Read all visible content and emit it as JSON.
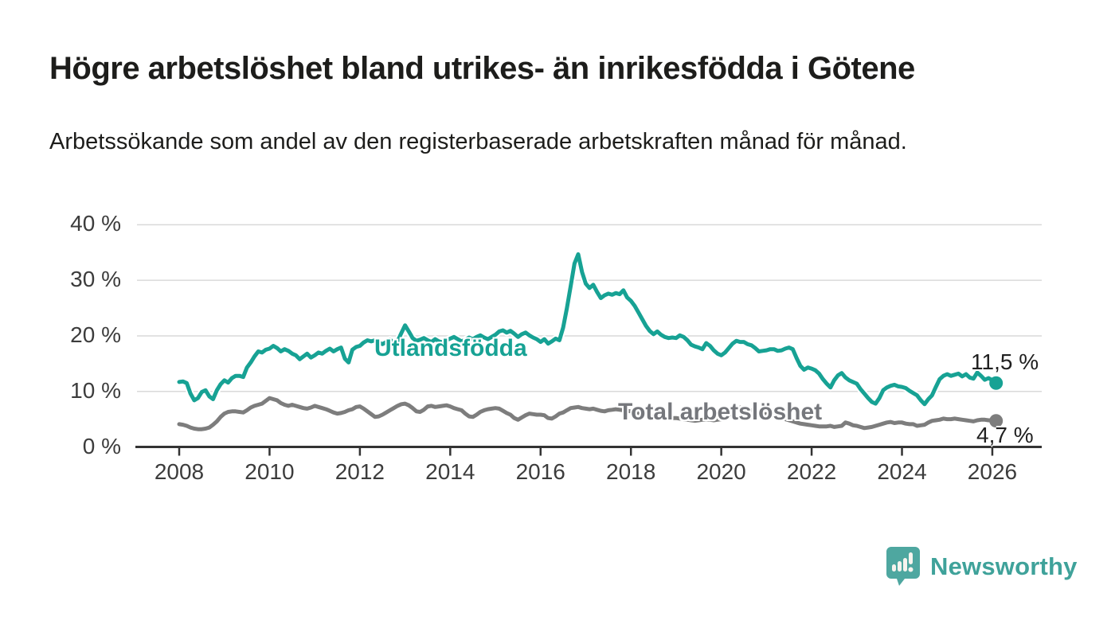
{
  "header": {
    "title": "Högre arbetslöshet bland utrikes- än inrikesfödda i Götene",
    "subtitle": "Arbetssökande som andel av den registerbaserade arbetskraften månad för månad."
  },
  "footer": {
    "brand": "Newsworthy",
    "brand_icon": "bar-chart-speech-bubble-icon"
  },
  "colors": {
    "foreign_born_line": "#17a294",
    "total_line": "#7d7d7d",
    "total_label": "#75777c",
    "grid": "#d9d9d9",
    "axis": "#333333",
    "tick_text": "#3c3c3c",
    "brand_teal": "#4ea7a0"
  },
  "chart_data": {
    "type": "line",
    "title": "Högre arbetslöshet bland utrikes- än inrikesfödda i Götene",
    "subtitle": "Arbetssökande som andel av den registerbaserade arbetskraften månad för månad.",
    "x_unit": "month",
    "x_start": "2008-01",
    "x_end": "2026-02",
    "ylim": [
      0,
      40
    ],
    "grid": "horizontal",
    "legend_position": "inline-labels",
    "y_ticks": [
      {
        "value": 0,
        "label": "0 %"
      },
      {
        "value": 10,
        "label": "10 %"
      },
      {
        "value": 20,
        "label": "20 %"
      },
      {
        "value": 30,
        "label": "30 %"
      },
      {
        "value": 40,
        "label": "40 %"
      }
    ],
    "x_ticks": [
      {
        "year": 2008,
        "label": "2008"
      },
      {
        "year": 2010,
        "label": "2010"
      },
      {
        "year": 2012,
        "label": "2012"
      },
      {
        "year": 2014,
        "label": "2014"
      },
      {
        "year": 2016,
        "label": "2016"
      },
      {
        "year": 2018,
        "label": "2018"
      },
      {
        "year": 2020,
        "label": "2020"
      },
      {
        "year": 2022,
        "label": "2022"
      },
      {
        "year": 2024,
        "label": "2024"
      },
      {
        "year": 2026,
        "label": "2026"
      }
    ],
    "series": [
      {
        "name": "Utlandsfödda",
        "color": "#17a294",
        "end_value": 11.5,
        "end_label": "11,5 %",
        "values": [
          11.7,
          11.8,
          11.5,
          9.6,
          8.4,
          8.8,
          9.9,
          10.2,
          9.1,
          8.6,
          10.2,
          11.3,
          12.0,
          11.6,
          12.4,
          12.8,
          12.8,
          12.6,
          14.3,
          15.2,
          16.3,
          17.2,
          17.0,
          17.5,
          17.7,
          18.2,
          17.8,
          17.2,
          17.6,
          17.3,
          16.8,
          16.5,
          15.8,
          16.3,
          16.8,
          16.1,
          16.5,
          17.0,
          16.8,
          17.3,
          17.7,
          17.2,
          17.6,
          17.9,
          15.9,
          15.2,
          17.5,
          18.0,
          18.2,
          18.8,
          19.2,
          19.0,
          19.2,
          18.8,
          18.5,
          18.9,
          19.3,
          18.8,
          19.0,
          20.5,
          21.9,
          20.8,
          19.6,
          19.1,
          19.3,
          19.6,
          19.2,
          18.9,
          19.4,
          19.0,
          18.8,
          19.2,
          19.5,
          19.8,
          19.4,
          19.0,
          19.3,
          19.7,
          19.4,
          19.8,
          20.1,
          19.7,
          19.4,
          19.8,
          20.2,
          20.8,
          21.0,
          20.6,
          20.9,
          20.4,
          19.8,
          20.3,
          20.6,
          20.1,
          19.7,
          19.4,
          18.9,
          19.4,
          18.6,
          19.0,
          19.5,
          19.2,
          21.5,
          25.0,
          29.0,
          33.0,
          34.7,
          31.5,
          29.4,
          28.6,
          29.2,
          27.9,
          26.8,
          27.3,
          27.6,
          27.4,
          27.7,
          27.5,
          28.2,
          26.9,
          26.3,
          25.4,
          24.2,
          23.0,
          21.8,
          20.9,
          20.3,
          20.8,
          20.2,
          19.8,
          19.6,
          19.7,
          19.6,
          20.1,
          19.8,
          19.2,
          18.4,
          18.1,
          17.9,
          17.6,
          18.7,
          18.2,
          17.4,
          16.8,
          16.5,
          17.0,
          17.8,
          18.6,
          19.1,
          18.9,
          18.9,
          18.5,
          18.3,
          17.8,
          17.2,
          17.3,
          17.4,
          17.6,
          17.6,
          17.3,
          17.4,
          17.7,
          17.9,
          17.6,
          16.0,
          14.6,
          13.9,
          14.3,
          14.1,
          13.8,
          13.2,
          12.2,
          11.4,
          10.7,
          12.0,
          12.9,
          13.3,
          12.5,
          12.0,
          11.7,
          11.4,
          10.4,
          9.6,
          8.8,
          8.1,
          7.8,
          8.8,
          10.2,
          10.7,
          11.0,
          11.2,
          10.9,
          10.8,
          10.6,
          10.1,
          9.7,
          9.3,
          8.4,
          7.7,
          8.6,
          9.3,
          10.8,
          12.2,
          12.8,
          13.1,
          12.8,
          13.0,
          13.2,
          12.7,
          13.1,
          12.5,
          12.3,
          13.4,
          12.8,
          12.1,
          12.4,
          12.0,
          11.5
        ]
      },
      {
        "name": "Total arbetslöshet",
        "color": "#7d7d7d",
        "end_value": 4.7,
        "end_label": "4,7 %",
        "values": [
          4.1,
          4.0,
          3.8,
          3.5,
          3.3,
          3.2,
          3.2,
          3.3,
          3.5,
          4.0,
          4.6,
          5.4,
          6.0,
          6.3,
          6.4,
          6.4,
          6.3,
          6.2,
          6.6,
          7.1,
          7.4,
          7.6,
          7.8,
          8.3,
          8.8,
          8.6,
          8.4,
          7.9,
          7.6,
          7.4,
          7.6,
          7.4,
          7.2,
          7.0,
          6.9,
          7.1,
          7.4,
          7.2,
          7.0,
          6.8,
          6.5,
          6.2,
          6.0,
          6.1,
          6.3,
          6.6,
          6.8,
          7.2,
          7.3,
          6.9,
          6.4,
          5.9,
          5.4,
          5.5,
          5.8,
          6.2,
          6.6,
          7.0,
          7.4,
          7.7,
          7.8,
          7.5,
          7.0,
          6.4,
          6.3,
          6.7,
          7.3,
          7.4,
          7.2,
          7.3,
          7.4,
          7.5,
          7.3,
          7.0,
          6.8,
          6.6,
          6.0,
          5.5,
          5.4,
          5.8,
          6.3,
          6.6,
          6.8,
          6.9,
          7.0,
          6.9,
          6.5,
          6.1,
          5.8,
          5.2,
          4.9,
          5.3,
          5.7,
          6.0,
          5.9,
          5.8,
          5.8,
          5.7,
          5.2,
          5.1,
          5.5,
          6.0,
          6.2,
          6.6,
          7.0,
          7.1,
          7.2,
          7.0,
          6.9,
          6.8,
          6.9,
          6.7,
          6.5,
          6.4,
          6.6,
          6.7,
          6.8,
          6.7,
          6.6,
          6.5,
          6.4,
          6.3,
          6.1,
          5.9,
          5.7,
          5.5,
          5.4,
          5.5,
          5.4,
          5.2,
          5.1,
          5.2,
          5.2,
          5.1,
          5.0,
          4.9,
          4.8,
          4.7,
          4.8,
          4.9,
          5.0,
          4.9,
          4.8,
          4.9,
          5.0,
          5.1,
          5.6,
          6.4,
          6.9,
          7.1,
          7.0,
          6.8,
          6.6,
          6.3,
          6.0,
          5.9,
          5.9,
          5.8,
          5.6,
          5.4,
          5.2,
          5.0,
          4.8,
          4.6,
          4.4,
          4.2,
          4.1,
          4.0,
          3.9,
          3.8,
          3.7,
          3.7,
          3.7,
          3.8,
          3.6,
          3.7,
          3.8,
          4.4,
          4.2,
          3.9,
          3.8,
          3.6,
          3.4,
          3.5,
          3.6,
          3.8,
          4.0,
          4.2,
          4.4,
          4.5,
          4.3,
          4.4,
          4.4,
          4.2,
          4.1,
          4.1,
          3.8,
          3.9,
          4.0,
          4.4,
          4.7,
          4.8,
          4.9,
          5.1,
          5.0,
          5.0,
          5.1,
          5.0,
          4.9,
          4.8,
          4.7,
          4.6,
          4.8,
          4.9,
          4.9,
          4.8,
          4.8,
          4.7
        ]
      }
    ]
  }
}
